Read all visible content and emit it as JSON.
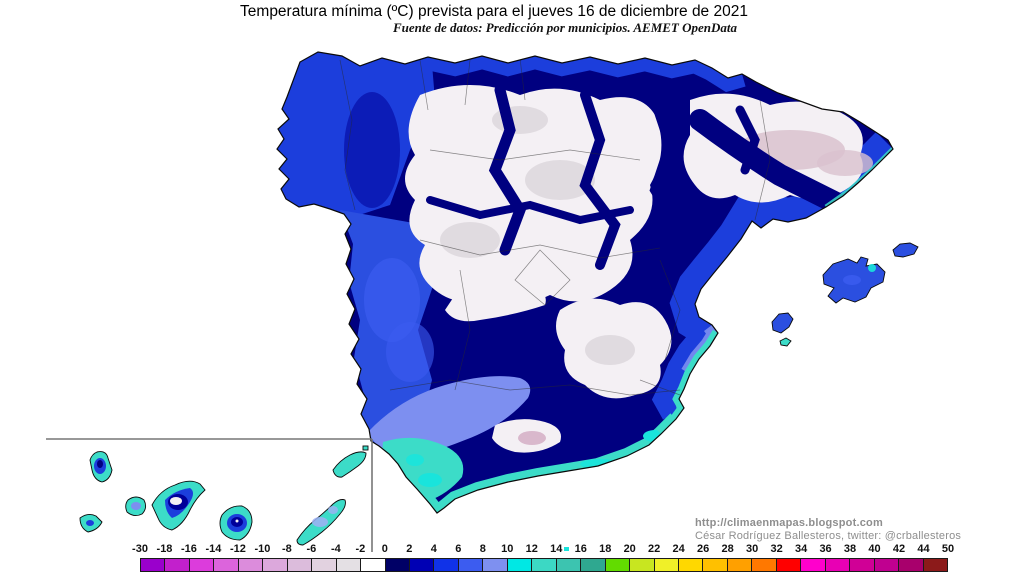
{
  "header": {
    "title": "Temperatura mínima (ºC) prevista para el jueves 16 de diciembre de 2021",
    "subtitle": "Fuente de datos: Predicción por municipios. AEMET OpenData"
  },
  "credit": {
    "url": "http://climaenmapas.blogspot.com",
    "author_line": "César Rodríguez Ballesteros, twitter: @crballesteros"
  },
  "colorbar": {
    "labels": [
      "-30",
      "-18",
      "-16",
      "-14",
      "-12",
      "-10",
      "-8",
      "-6",
      "-4",
      "-2",
      "0",
      "2",
      "4",
      "6",
      "8",
      "10",
      "12",
      "14",
      "16",
      "18",
      "20",
      "22",
      "24",
      "26",
      "28",
      "30",
      "32",
      "34",
      "36",
      "38",
      "40",
      "42",
      "44",
      "50"
    ],
    "colors": [
      "#9A00CC",
      "#C220CC",
      "#DC3CDC",
      "#DC64DC",
      "#DC8CDC",
      "#DCA8DC",
      "#DCBCDC",
      "#E2D2E0",
      "#E4E0E4",
      "#FFFFFF",
      "#000066",
      "#0000B4",
      "#1032E8",
      "#3C5CF0",
      "#7E90F0",
      "#00E8E4",
      "#3CD8C4",
      "#3CC4B0",
      "#2FA890",
      "#62DC00",
      "#C8E620",
      "#F0F028",
      "#FFD800",
      "#FFC000",
      "#FFA000",
      "#FF7800",
      "#FF0000",
      "#FF00CC",
      "#E800B4",
      "#D00096",
      "#C00090",
      "#A8006C",
      "#8C1A1A"
    ]
  },
  "palette": {
    "navy": "#000080",
    "navy2": "#000099",
    "darknavy": "#000066",
    "blue": "#1C3EDC",
    "medblue": "#2B4FE0",
    "brightblue": "#3C5CF0",
    "lightblue": "#7D8FF0",
    "paleblue": "#9FB0F4",
    "cyan": "#19E4DC",
    "turquoise": "#3CDCC8",
    "white_snow": "#F4F0F4",
    "lightgray": "#DED8DE",
    "pink": "#D9C2CE",
    "snowpink": "#D9B8CC",
    "outline": "#0A0A0A",
    "provline": "#2A2A2A",
    "insetline": "#777777"
  }
}
